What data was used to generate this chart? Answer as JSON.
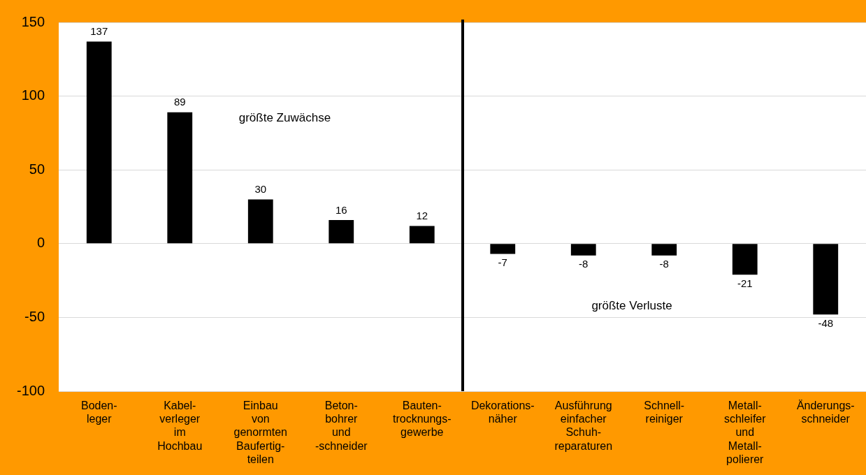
{
  "chart_data": {
    "type": "bar",
    "categories": [
      "Boden-\nleger",
      "Kabel-\nverleger\nim\nHochbau",
      "Einbau\nvon\ngenormten\nBaufertig-\nteilen",
      "Beton-\nbohrer\nund\n-schneider",
      "Bauten-\ntrocknungs-\ngewerbe",
      "Dekorations-\nnäher",
      "Ausführung\neinfacher\nSchuh-\nreparaturen",
      "Schnell-\nreiniger",
      "Metall-\nschleifer\nund\nMetall-\npolierer",
      "Änderungs-\nschneider"
    ],
    "values": [
      137,
      89,
      30,
      16,
      12,
      -7,
      -8,
      -8,
      -21,
      -48
    ],
    "color": "#000000",
    "ylim": [
      -100,
      150
    ],
    "yticks": [
      -100,
      -50,
      0,
      50,
      100,
      150
    ],
    "grid": "y",
    "legend": false,
    "data_labels": true,
    "annotations": [
      "größte Zuwächse",
      "größte Verluste"
    ]
  }
}
